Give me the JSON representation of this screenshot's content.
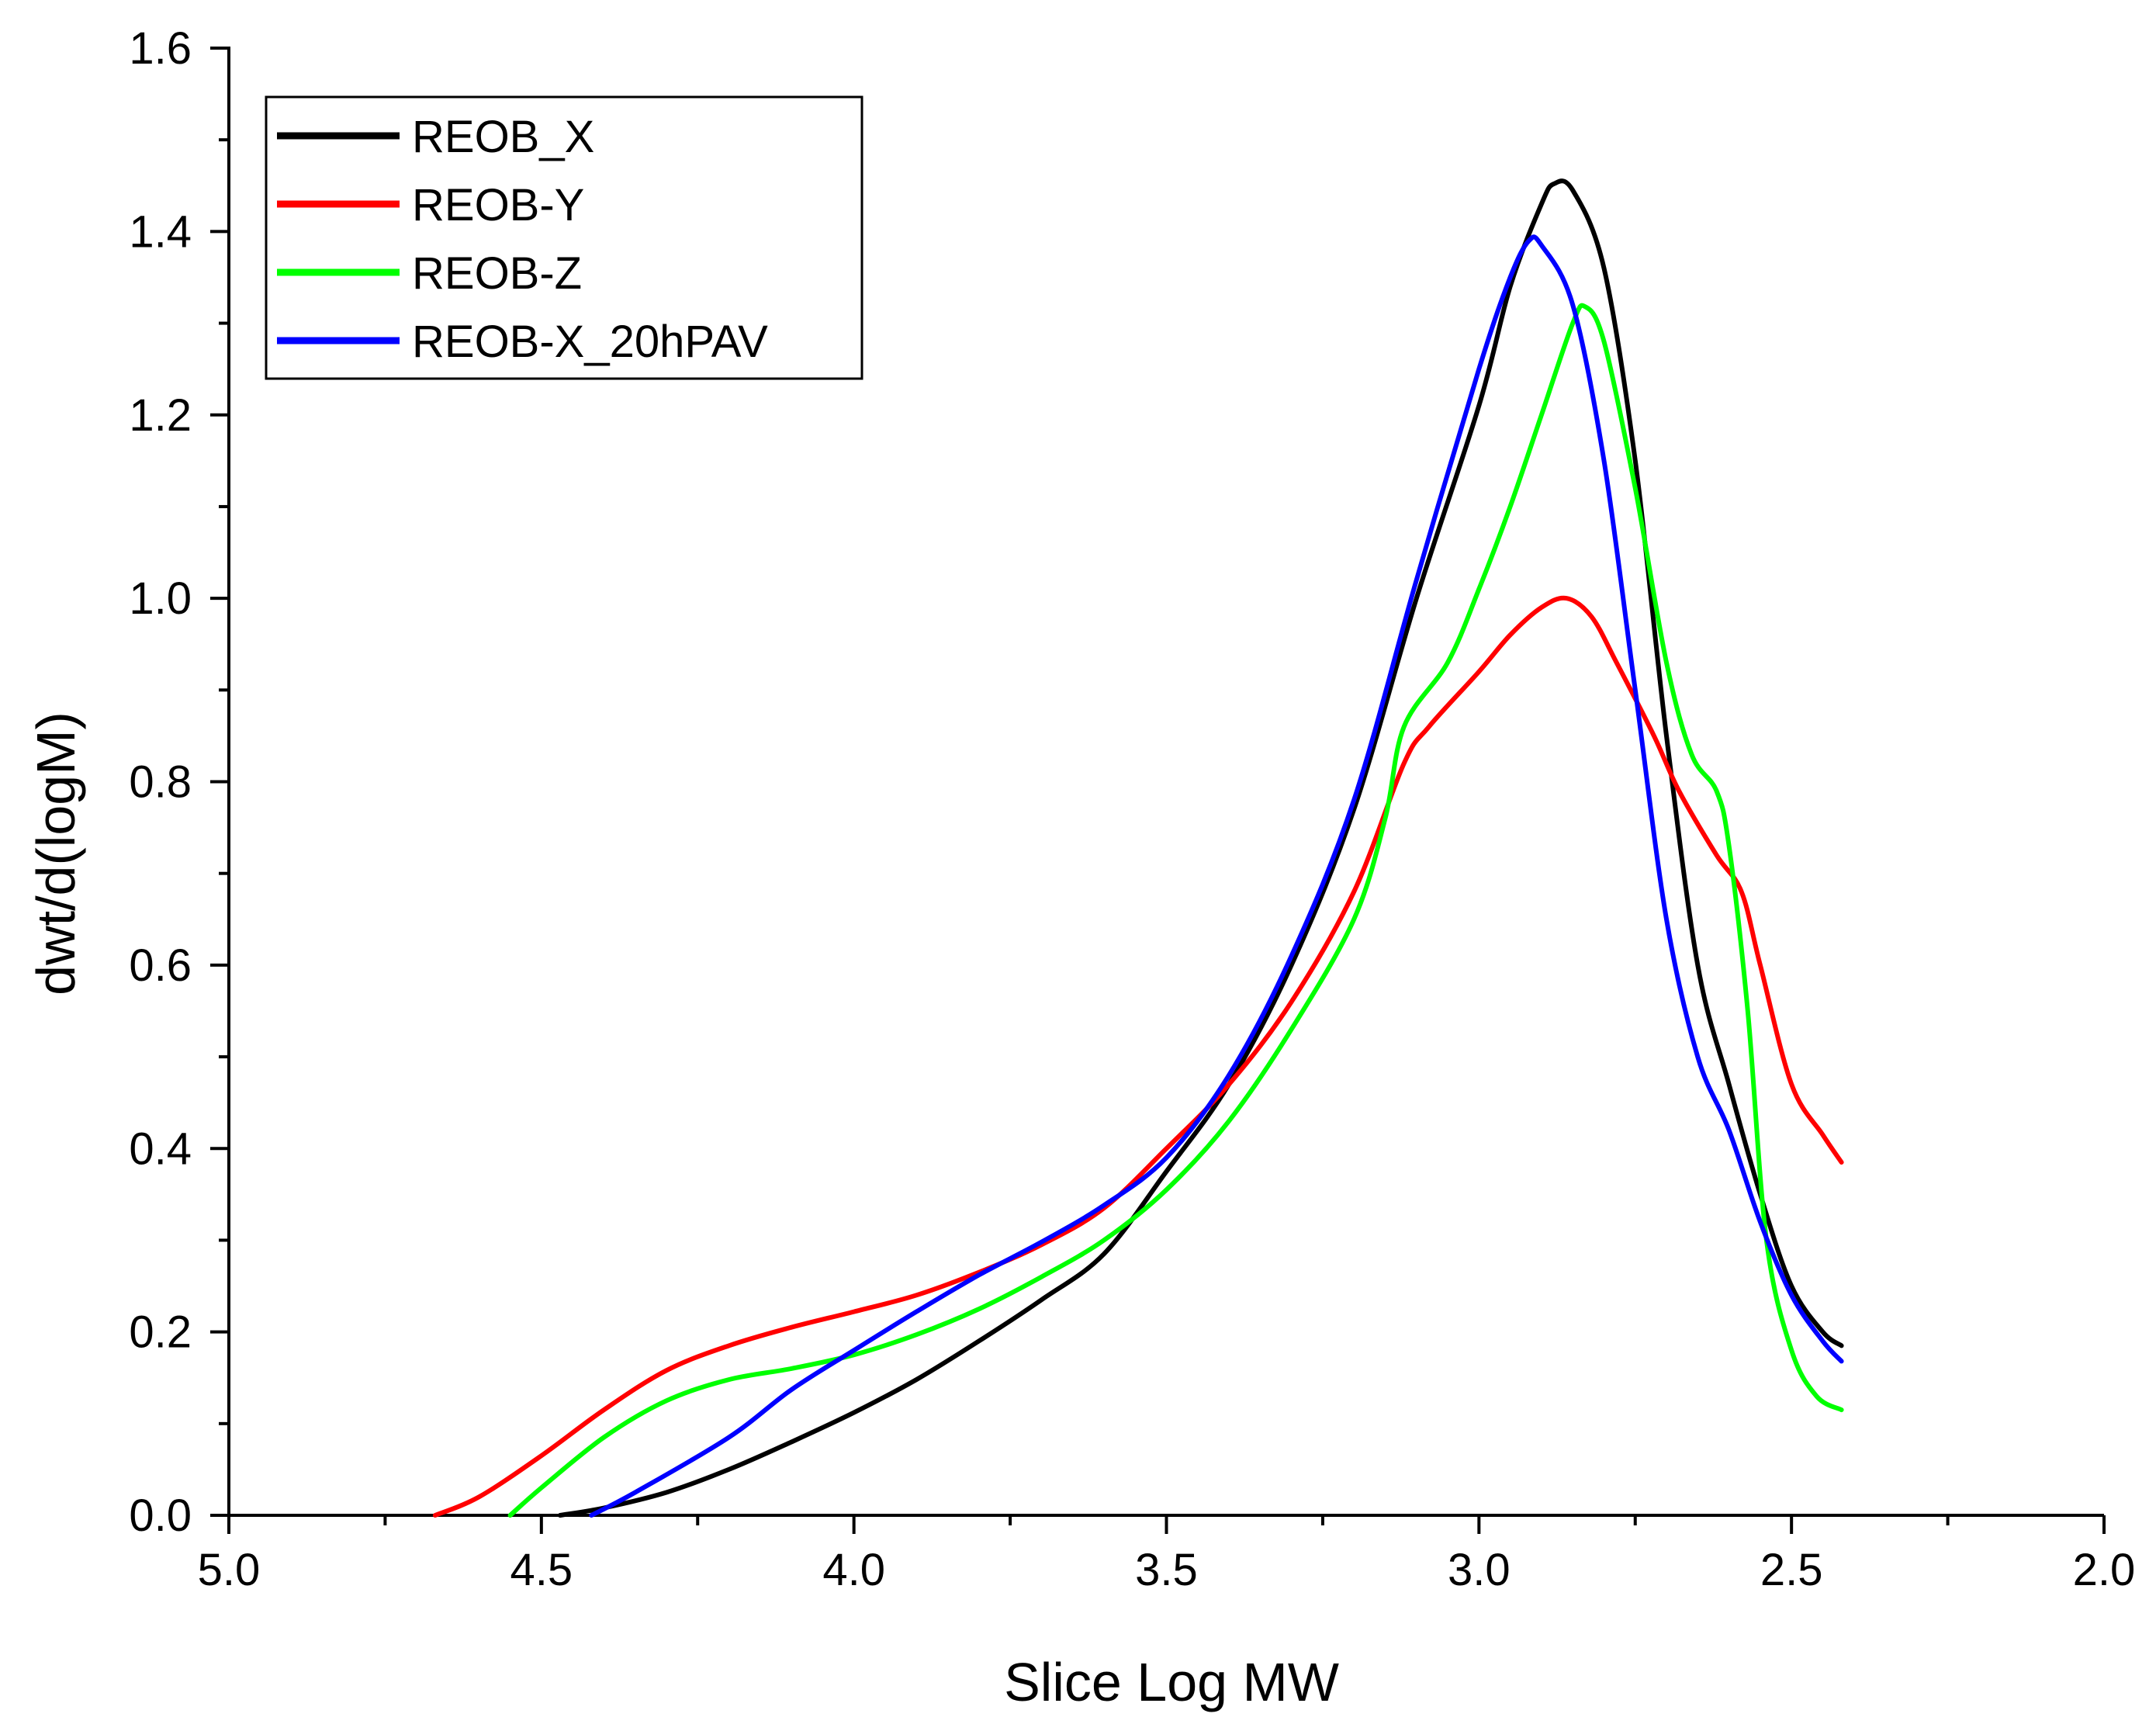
{
  "chart_data": {
    "type": "line",
    "title": "",
    "xlabel": "Slice Log MW",
    "ylabel": "dwt/d(logM)",
    "xlim": [
      5.0,
      2.0
    ],
    "ylim": [
      0.0,
      1.6
    ],
    "x_ticks": [
      5.0,
      4.5,
      4.0,
      3.5,
      3.0,
      2.5,
      2.0
    ],
    "x_tick_labels": [
      "5.0",
      "4.5",
      "4.0",
      "3.5",
      "3.0",
      "2.5",
      "2.0"
    ],
    "y_ticks": [
      0.0,
      0.2,
      0.4,
      0.6,
      0.8,
      1.0,
      1.2,
      1.4,
      1.6
    ],
    "y_tick_labels": [
      "0.0",
      "0.2",
      "0.4",
      "0.6",
      "0.8",
      "1.0",
      "1.2",
      "1.4",
      "1.6"
    ],
    "grid": false,
    "legend_position": "top-left",
    "series": [
      {
        "name": "REOB_X",
        "color": "#000000",
        "points": [
          [
            4.47,
            0.0
          ],
          [
            4.4,
            0.008
          ],
          [
            4.3,
            0.025
          ],
          [
            4.2,
            0.05
          ],
          [
            4.1,
            0.08
          ],
          [
            4.0,
            0.112
          ],
          [
            3.9,
            0.148
          ],
          [
            3.8,
            0.19
          ],
          [
            3.7,
            0.235
          ],
          [
            3.6,
            0.285
          ],
          [
            3.5,
            0.375
          ],
          [
            3.4,
            0.47
          ],
          [
            3.3,
            0.6
          ],
          [
            3.2,
            0.77
          ],
          [
            3.1,
            1.0
          ],
          [
            3.0,
            1.21
          ],
          [
            2.95,
            1.34
          ],
          [
            2.9,
            1.43
          ],
          [
            2.88,
            1.452
          ],
          [
            2.85,
            1.445
          ],
          [
            2.8,
            1.36
          ],
          [
            2.75,
            1.15
          ],
          [
            2.7,
            0.85
          ],
          [
            2.65,
            0.6
          ],
          [
            2.6,
            0.47
          ],
          [
            2.55,
            0.35
          ],
          [
            2.5,
            0.25
          ],
          [
            2.45,
            0.2
          ],
          [
            2.42,
            0.185
          ]
        ]
      },
      {
        "name": "REOB-Y",
        "color": "#ff0000",
        "points": [
          [
            4.67,
            0.0
          ],
          [
            4.6,
            0.02
          ],
          [
            4.5,
            0.065
          ],
          [
            4.4,
            0.115
          ],
          [
            4.3,
            0.158
          ],
          [
            4.2,
            0.185
          ],
          [
            4.1,
            0.205
          ],
          [
            4.0,
            0.222
          ],
          [
            3.9,
            0.24
          ],
          [
            3.8,
            0.265
          ],
          [
            3.7,
            0.295
          ],
          [
            3.6,
            0.335
          ],
          [
            3.5,
            0.4
          ],
          [
            3.4,
            0.47
          ],
          [
            3.3,
            0.56
          ],
          [
            3.2,
            0.68
          ],
          [
            3.12,
            0.82
          ],
          [
            3.08,
            0.86
          ],
          [
            3.0,
            0.92
          ],
          [
            2.95,
            0.96
          ],
          [
            2.9,
            0.99
          ],
          [
            2.86,
            1.0
          ],
          [
            2.82,
            0.98
          ],
          [
            2.78,
            0.93
          ],
          [
            2.72,
            0.85
          ],
          [
            2.68,
            0.79
          ],
          [
            2.62,
            0.72
          ],
          [
            2.58,
            0.68
          ],
          [
            2.55,
            0.6
          ],
          [
            2.5,
            0.47
          ],
          [
            2.45,
            0.415
          ],
          [
            2.42,
            0.385
          ]
        ]
      },
      {
        "name": "REOB-Z",
        "color": "#00ff00",
        "points": [
          [
            4.55,
            0.0
          ],
          [
            4.5,
            0.03
          ],
          [
            4.4,
            0.085
          ],
          [
            4.3,
            0.125
          ],
          [
            4.2,
            0.148
          ],
          [
            4.1,
            0.16
          ],
          [
            4.0,
            0.175
          ],
          [
            3.9,
            0.197
          ],
          [
            3.8,
            0.225
          ],
          [
            3.7,
            0.26
          ],
          [
            3.6,
            0.3
          ],
          [
            3.5,
            0.355
          ],
          [
            3.4,
            0.43
          ],
          [
            3.3,
            0.53
          ],
          [
            3.2,
            0.65
          ],
          [
            3.15,
            0.76
          ],
          [
            3.12,
            0.86
          ],
          [
            3.05,
            0.93
          ],
          [
            3.0,
            1.01
          ],
          [
            2.95,
            1.1
          ],
          [
            2.9,
            1.2
          ],
          [
            2.85,
            1.3
          ],
          [
            2.83,
            1.318
          ],
          [
            2.8,
            1.28
          ],
          [
            2.75,
            1.12
          ],
          [
            2.7,
            0.93
          ],
          [
            2.66,
            0.83
          ],
          [
            2.62,
            0.79
          ],
          [
            2.6,
            0.73
          ],
          [
            2.57,
            0.55
          ],
          [
            2.54,
            0.3
          ],
          [
            2.5,
            0.18
          ],
          [
            2.46,
            0.13
          ],
          [
            2.42,
            0.115
          ]
        ]
      },
      {
        "name": "REOB-X_20hPAV",
        "color": "#0000ff",
        "points": [
          [
            4.42,
            0.0
          ],
          [
            4.35,
            0.025
          ],
          [
            4.2,
            0.085
          ],
          [
            4.1,
            0.137
          ],
          [
            4.0,
            0.18
          ],
          [
            3.9,
            0.222
          ],
          [
            3.8,
            0.262
          ],
          [
            3.7,
            0.298
          ],
          [
            3.6,
            0.338
          ],
          [
            3.5,
            0.39
          ],
          [
            3.4,
            0.48
          ],
          [
            3.3,
            0.61
          ],
          [
            3.2,
            0.78
          ],
          [
            3.1,
            1.02
          ],
          [
            3.0,
            1.25
          ],
          [
            2.95,
            1.35
          ],
          [
            2.92,
            1.39
          ],
          [
            2.9,
            1.385
          ],
          [
            2.85,
            1.32
          ],
          [
            2.8,
            1.15
          ],
          [
            2.75,
            0.9
          ],
          [
            2.7,
            0.65
          ],
          [
            2.65,
            0.5
          ],
          [
            2.6,
            0.42
          ],
          [
            2.55,
            0.32
          ],
          [
            2.5,
            0.24
          ],
          [
            2.45,
            0.19
          ],
          [
            2.42,
            0.168
          ]
        ]
      }
    ]
  }
}
